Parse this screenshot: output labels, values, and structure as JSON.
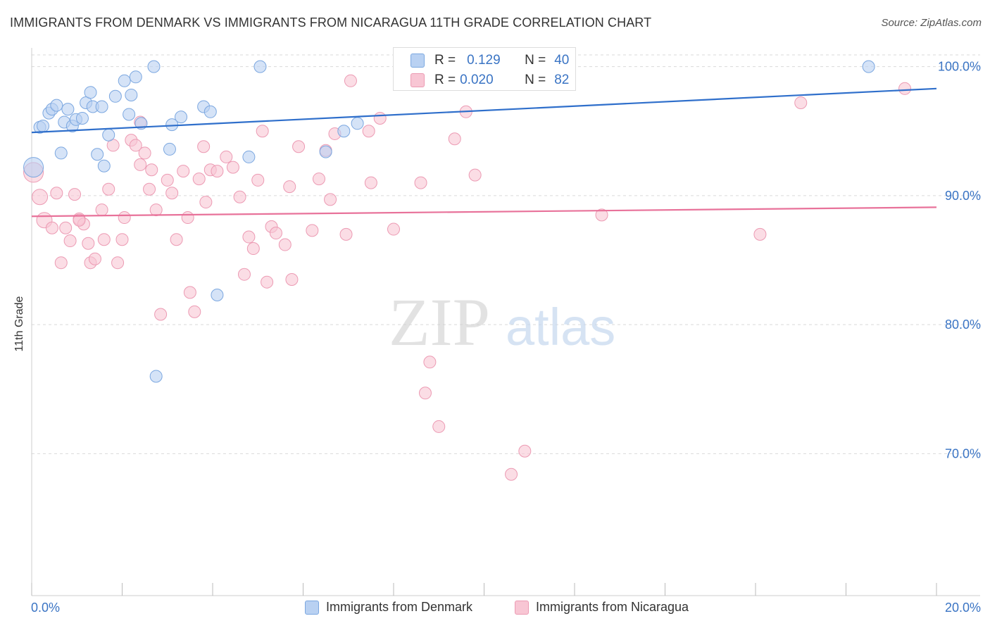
{
  "title": "IMMIGRANTS FROM DENMARK VS IMMIGRANTS FROM NICARAGUA 11TH GRADE CORRELATION CHART",
  "source": "Source: ZipAtlas.com",
  "watermark": {
    "zip": "ZIP",
    "atlas": "atlas"
  },
  "colors": {
    "denmark_fill": "#b9d1f2",
    "denmark_stroke": "#7ba7e0",
    "denmark_line": "#2f6fcb",
    "nicaragua_fill": "#f8c6d4",
    "nicaragua_stroke": "#ec9ab3",
    "nicaragua_line": "#e8729a",
    "tick_text": "#3a74c4",
    "grid": "#d9d9d9"
  },
  "stats": {
    "denmark": {
      "r_label": "R =",
      "r_value": "0.129",
      "n_label": "N =",
      "n_value": "40"
    },
    "nicaragua": {
      "r_label": "R =",
      "r_value": "0.020",
      "n_label": "N =",
      "n_value": "82"
    }
  },
  "legend": {
    "denmark": "Immigrants from Denmark",
    "nicaragua": "Immigrants from Nicaragua"
  },
  "chart_data": {
    "type": "scatter",
    "title": "IMMIGRANTS FROM DENMARK VS IMMIGRANTS FROM NICARAGUA 11TH GRADE CORRELATION CHART",
    "xlabel": "",
    "ylabel": "11th Grade",
    "xlim": [
      0,
      20
    ],
    "ylim": [
      59,
      102
    ],
    "x_tick_labels": [
      "0.0%",
      "20.0%"
    ],
    "y_ticks": [
      70,
      80,
      90,
      100
    ],
    "y_tick_labels": [
      "70.0%",
      "80.0%",
      "90.0%",
      "100.0%"
    ],
    "grid": true,
    "legend_position": "bottom",
    "series": [
      {
        "name": "Immigrants from Denmark",
        "trend": {
          "x": [
            0,
            20
          ],
          "y": [
            94.9,
            98.3
          ]
        },
        "points": [
          [
            0.04,
            92.2,
            "big"
          ],
          [
            0.18,
            95.3
          ],
          [
            0.25,
            95.4
          ],
          [
            0.38,
            96.4
          ],
          [
            0.45,
            96.7
          ],
          [
            0.55,
            97.0
          ],
          [
            0.65,
            93.3
          ],
          [
            0.72,
            95.7
          ],
          [
            0.8,
            96.7
          ],
          [
            0.9,
            95.4
          ],
          [
            0.98,
            95.9
          ],
          [
            1.12,
            96.0
          ],
          [
            1.2,
            97.2
          ],
          [
            1.3,
            98.0
          ],
          [
            1.35,
            96.9
          ],
          [
            1.45,
            93.2
          ],
          [
            1.55,
            96.9
          ],
          [
            1.6,
            92.3
          ],
          [
            1.7,
            94.7
          ],
          [
            1.85,
            97.7
          ],
          [
            2.05,
            98.9
          ],
          [
            2.15,
            96.3
          ],
          [
            2.2,
            97.8
          ],
          [
            2.3,
            99.2
          ],
          [
            2.42,
            95.6
          ],
          [
            2.7,
            100.0
          ],
          [
            3.05,
            93.6
          ],
          [
            3.1,
            95.5
          ],
          [
            3.3,
            96.1
          ],
          [
            3.8,
            96.9
          ],
          [
            3.95,
            96.5
          ],
          [
            4.1,
            82.3
          ],
          [
            4.8,
            93.0
          ],
          [
            5.05,
            100.0
          ],
          [
            2.75,
            76.0
          ],
          [
            6.5,
            93.4
          ],
          [
            6.9,
            95.0
          ],
          [
            7.2,
            95.6
          ],
          [
            8.7,
            100.0
          ],
          [
            18.5,
            100.0
          ]
        ]
      },
      {
        "name": "Immigrants from Nicaragua",
        "trend": {
          "x": [
            0,
            20
          ],
          "y": [
            88.4,
            89.1
          ]
        },
        "points": [
          [
            0.04,
            91.8,
            "big"
          ],
          [
            0.18,
            89.9,
            "mid"
          ],
          [
            0.28,
            88.1,
            "mid"
          ],
          [
            0.45,
            87.5
          ],
          [
            0.55,
            90.2
          ],
          [
            0.65,
            84.8
          ],
          [
            0.75,
            87.5
          ],
          [
            0.85,
            86.5
          ],
          [
            0.95,
            90.1
          ],
          [
            1.05,
            88.2
          ],
          [
            1.15,
            87.8
          ],
          [
            1.25,
            86.3
          ],
          [
            1.3,
            84.8
          ],
          [
            1.4,
            85.1
          ],
          [
            1.55,
            88.9
          ],
          [
            1.6,
            86.6
          ],
          [
            1.7,
            90.5
          ],
          [
            1.8,
            93.9
          ],
          [
            1.9,
            84.8
          ],
          [
            2.0,
            86.6
          ],
          [
            2.05,
            88.3
          ],
          [
            2.2,
            94.3
          ],
          [
            2.3,
            93.9
          ],
          [
            2.4,
            92.4
          ],
          [
            2.5,
            93.3
          ],
          [
            2.6,
            90.5
          ],
          [
            2.65,
            92.0
          ],
          [
            2.75,
            88.9
          ],
          [
            2.85,
            80.8
          ],
          [
            3.0,
            91.2
          ],
          [
            3.1,
            90.2
          ],
          [
            3.2,
            86.6
          ],
          [
            3.35,
            91.9
          ],
          [
            3.45,
            88.3
          ],
          [
            3.5,
            82.5
          ],
          [
            3.6,
            81.0
          ],
          [
            3.7,
            91.3
          ],
          [
            3.8,
            93.8
          ],
          [
            3.85,
            89.5
          ],
          [
            3.95,
            92.0
          ],
          [
            4.1,
            91.9
          ],
          [
            4.3,
            93.0
          ],
          [
            4.45,
            92.2
          ],
          [
            4.6,
            89.9
          ],
          [
            4.7,
            83.9
          ],
          [
            4.8,
            86.8
          ],
          [
            4.9,
            85.9
          ],
          [
            5.0,
            91.2
          ],
          [
            5.1,
            95.0
          ],
          [
            5.2,
            83.3
          ],
          [
            5.3,
            87.6
          ],
          [
            5.4,
            87.1
          ],
          [
            5.6,
            86.2
          ],
          [
            5.7,
            90.7
          ],
          [
            5.75,
            83.5
          ],
          [
            5.9,
            93.8
          ],
          [
            6.2,
            87.3
          ],
          [
            6.35,
            91.3
          ],
          [
            6.5,
            93.5
          ],
          [
            6.6,
            89.7
          ],
          [
            6.7,
            94.8
          ],
          [
            6.95,
            87.0
          ],
          [
            7.05,
            98.9
          ],
          [
            7.45,
            95.0
          ],
          [
            7.5,
            91.0
          ],
          [
            7.7,
            96.0
          ],
          [
            8.0,
            87.4
          ],
          [
            8.6,
            91.0
          ],
          [
            8.8,
            77.1
          ],
          [
            8.7,
            74.7
          ],
          [
            9.0,
            72.1
          ],
          [
            9.35,
            94.4
          ],
          [
            9.6,
            96.5
          ],
          [
            9.8,
            91.6
          ],
          [
            10.6,
            68.4
          ],
          [
            10.9,
            70.2
          ],
          [
            12.6,
            88.5
          ],
          [
            16.1,
            87.0
          ],
          [
            17.0,
            97.2
          ],
          [
            19.3,
            98.3
          ],
          [
            1.05,
            88.1
          ],
          [
            2.4,
            95.7
          ]
        ]
      }
    ]
  }
}
